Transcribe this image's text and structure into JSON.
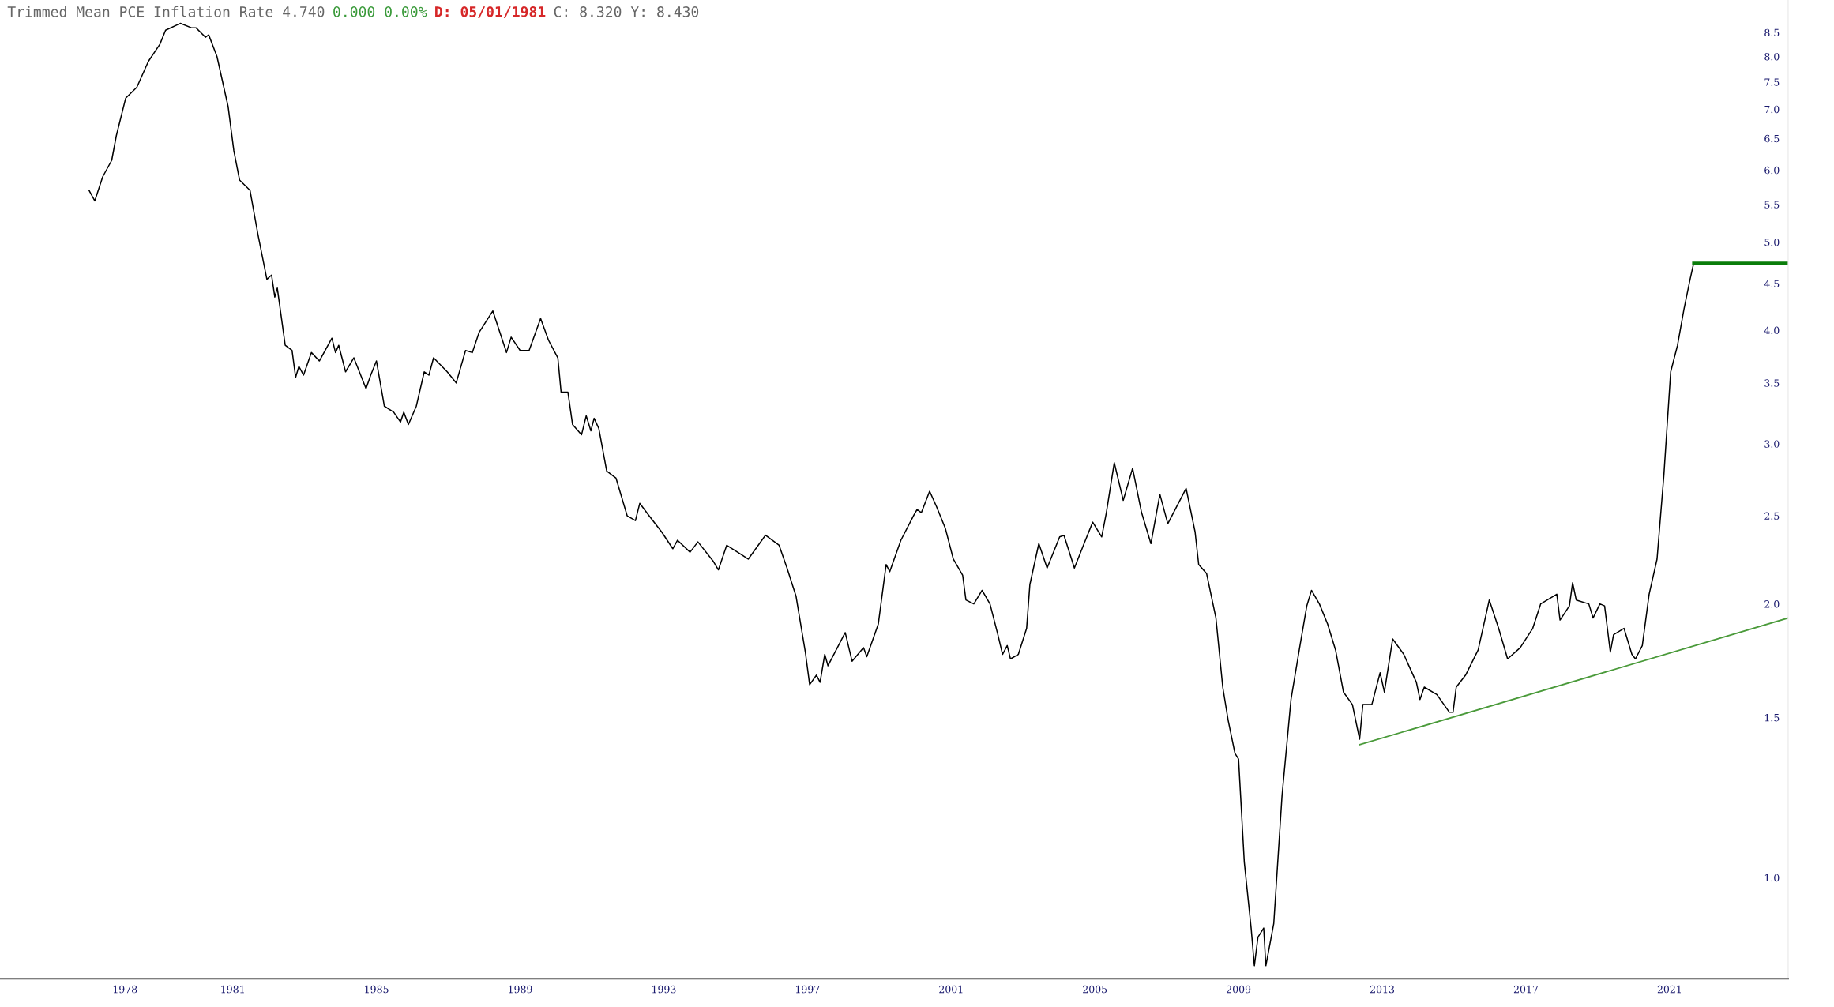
{
  "chart_data": {
    "type": "line",
    "title": "Trimmed Mean PCE Inflation Rate 4.740",
    "annotations": [
      "0.000 0.00%",
      "D: 05/01/1981",
      "C: 8.320 Y: 8.430"
    ],
    "log": true,
    "grid": false,
    "legend": false,
    "marker": "none",
    "line_style": "solid",
    "xlim": [
      1974.52,
      2024.3
    ],
    "ylim": [
      0.774,
      9.23
    ],
    "xticks": [
      1978,
      1981,
      1985,
      1989,
      1993,
      1997,
      2001,
      2005,
      2009,
      2013,
      2017,
      2021
    ],
    "yticks": [
      {
        "value": 1,
        "label": "1.0"
      },
      1.5,
      {
        "value": 2,
        "label": "2.0"
      },
      2.5,
      {
        "value": 3,
        "label": "3.0"
      },
      3.5,
      {
        "value": 4,
        "label": "4.0"
      },
      4.5,
      {
        "value": 5,
        "label": "5.0"
      },
      5.5,
      {
        "value": 6,
        "label": "6.0"
      },
      6.5,
      {
        "value": 7,
        "label": "7.0"
      },
      7.5,
      {
        "value": 8,
        "label": "8.0"
      },
      8.5
    ],
    "series": [
      {
        "color": "#000000",
        "x": [
          1977.0,
          1977.16,
          1977.38,
          1977.63,
          1977.76,
          1978.02,
          1978.33,
          1978.65,
          1978.97,
          1979.13,
          1979.54,
          1979.86,
          1979.98,
          1980.24,
          1980.33,
          1980.56,
          1980.87,
          1981.03,
          1981.19,
          1981.48,
          1981.7,
          1981.95,
          1982.08,
          1982.17,
          1982.24,
          1982.46,
          1982.65,
          1982.75,
          1982.84,
          1982.97,
          1983.19,
          1983.41,
          1983.76,
          1983.86,
          1983.95,
          1984.14,
          1984.37,
          1984.71,
          1984.84,
          1985.0,
          1985.22,
          1985.48,
          1985.67,
          1985.76,
          1985.89,
          1986.11,
          1986.33,
          1986.46,
          1986.59,
          1986.97,
          1987.22,
          1987.48,
          1987.67,
          1987.86,
          1988.24,
          1988.62,
          1988.75,
          1989.0,
          1989.25,
          1989.57,
          1989.79,
          1990.05,
          1990.14,
          1990.33,
          1990.46,
          1990.71,
          1990.84,
          1990.97,
          1991.06,
          1991.19,
          1991.41,
          1991.67,
          1991.98,
          1992.21,
          1992.33,
          1992.59,
          1992.94,
          1993.25,
          1993.38,
          1993.73,
          1993.95,
          1994.37,
          1994.52,
          1994.75,
          1995.13,
          1995.35,
          1995.73,
          1995.83,
          1996.21,
          1996.43,
          1996.68,
          1996.94,
          1997.06,
          1997.25,
          1997.35,
          1997.48,
          1997.57,
          1998.05,
          1998.24,
          1998.56,
          1998.65,
          1998.97,
          1999.19,
          1999.29,
          1999.6,
          1999.95,
          2000.05,
          2000.17,
          2000.4,
          2000.59,
          2000.84,
          2001.06,
          2001.32,
          2001.41,
          2001.63,
          2001.86,
          2002.08,
          2002.3,
          2002.43,
          2002.56,
          2002.65,
          2002.87,
          2003.1,
          2003.19,
          2003.44,
          2003.67,
          2004.02,
          2004.14,
          2004.43,
          2004.68,
          2004.94,
          2005.19,
          2005.32,
          2005.54,
          2005.79,
          2006.05,
          2006.3,
          2006.56,
          2006.81,
          2007.03,
          2007.54,
          2007.79,
          2007.89,
          2008.11,
          2008.37,
          2008.56,
          2008.71,
          2008.9,
          2009.0,
          2009.16,
          2009.35,
          2009.44,
          2009.54,
          2009.7,
          2009.76,
          2009.98,
          2010.21,
          2010.46,
          2010.71,
          2010.9,
          2011.03,
          2011.25,
          2011.48,
          2011.7,
          2011.92,
          2012.17,
          2012.37,
          2012.46,
          2012.71,
          2012.94,
          2013.06,
          2013.29,
          2013.6,
          2013.95,
          2014.05,
          2014.17,
          2014.52,
          2014.87,
          2014.97,
          2015.06,
          2015.32,
          2015.67,
          2015.98,
          2016.24,
          2016.49,
          2016.84,
          2017.19,
          2017.41,
          2017.86,
          2017.95,
          2018.21,
          2018.3,
          2018.4,
          2018.75,
          2018.87,
          2019.06,
          2019.19,
          2019.35,
          2019.44,
          2019.73,
          2019.95,
          2020.05,
          2020.24,
          2020.43,
          2020.65,
          2020.84,
          2021.03,
          2021.22,
          2021.4,
          2021.57,
          2021.67
        ],
        "values": [
          5.7,
          5.55,
          5.9,
          6.15,
          6.55,
          7.2,
          7.4,
          7.9,
          8.25,
          8.55,
          8.7,
          8.6,
          8.6,
          8.4,
          8.45,
          8.0,
          7.05,
          6.3,
          5.85,
          5.7,
          5.1,
          4.55,
          4.6,
          4.35,
          4.45,
          3.85,
          3.8,
          3.55,
          3.65,
          3.57,
          3.78,
          3.7,
          3.92,
          3.78,
          3.85,
          3.6,
          3.73,
          3.45,
          3.57,
          3.7,
          3.3,
          3.25,
          3.17,
          3.25,
          3.15,
          3.3,
          3.6,
          3.57,
          3.73,
          3.6,
          3.5,
          3.8,
          3.78,
          3.98,
          4.2,
          3.78,
          3.93,
          3.8,
          3.8,
          4.12,
          3.9,
          3.73,
          3.42,
          3.42,
          3.15,
          3.07,
          3.22,
          3.1,
          3.2,
          3.12,
          2.8,
          2.75,
          2.5,
          2.47,
          2.58,
          2.5,
          2.4,
          2.3,
          2.35,
          2.28,
          2.34,
          2.23,
          2.18,
          2.32,
          2.27,
          2.24,
          2.35,
          2.38,
          2.32,
          2.19,
          2.04,
          1.77,
          1.63,
          1.67,
          1.64,
          1.76,
          1.71,
          1.86,
          1.73,
          1.79,
          1.75,
          1.9,
          2.21,
          2.17,
          2.35,
          2.5,
          2.54,
          2.52,
          2.66,
          2.56,
          2.42,
          2.24,
          2.15,
          2.02,
          2.0,
          2.07,
          2.0,
          1.85,
          1.76,
          1.8,
          1.74,
          1.76,
          1.88,
          2.1,
          2.33,
          2.19,
          2.37,
          2.38,
          2.19,
          2.32,
          2.46,
          2.37,
          2.52,
          2.86,
          2.6,
          2.82,
          2.52,
          2.33,
          2.64,
          2.45,
          2.68,
          2.4,
          2.21,
          2.16,
          1.93,
          1.62,
          1.49,
          1.37,
          1.35,
          1.04,
          0.88,
          0.8,
          0.86,
          0.88,
          0.8,
          0.89,
          1.23,
          1.57,
          1.8,
          1.99,
          2.07,
          2.0,
          1.9,
          1.78,
          1.6,
          1.55,
          1.42,
          1.55,
          1.55,
          1.68,
          1.6,
          1.83,
          1.76,
          1.64,
          1.57,
          1.62,
          1.59,
          1.52,
          1.52,
          1.62,
          1.67,
          1.78,
          2.02,
          1.88,
          1.74,
          1.79,
          1.88,
          2.0,
          2.05,
          1.92,
          1.99,
          2.11,
          2.02,
          2.0,
          1.93,
          2.0,
          1.99,
          1.77,
          1.85,
          1.88,
          1.76,
          1.74,
          1.8,
          2.05,
          2.24,
          2.77,
          3.6,
          3.85,
          4.22,
          4.55,
          4.74
        ]
      },
      {
        "color": "#4a9a3a",
        "x": [
          2012.37,
          2024.3
        ],
        "values": [
          1.4,
          1.93
        ]
      },
      {
        "color": "#0a7d0a",
        "x": [
          2021.67,
          2024.3
        ],
        "values": [
          4.74,
          4.74
        ]
      }
    ]
  }
}
